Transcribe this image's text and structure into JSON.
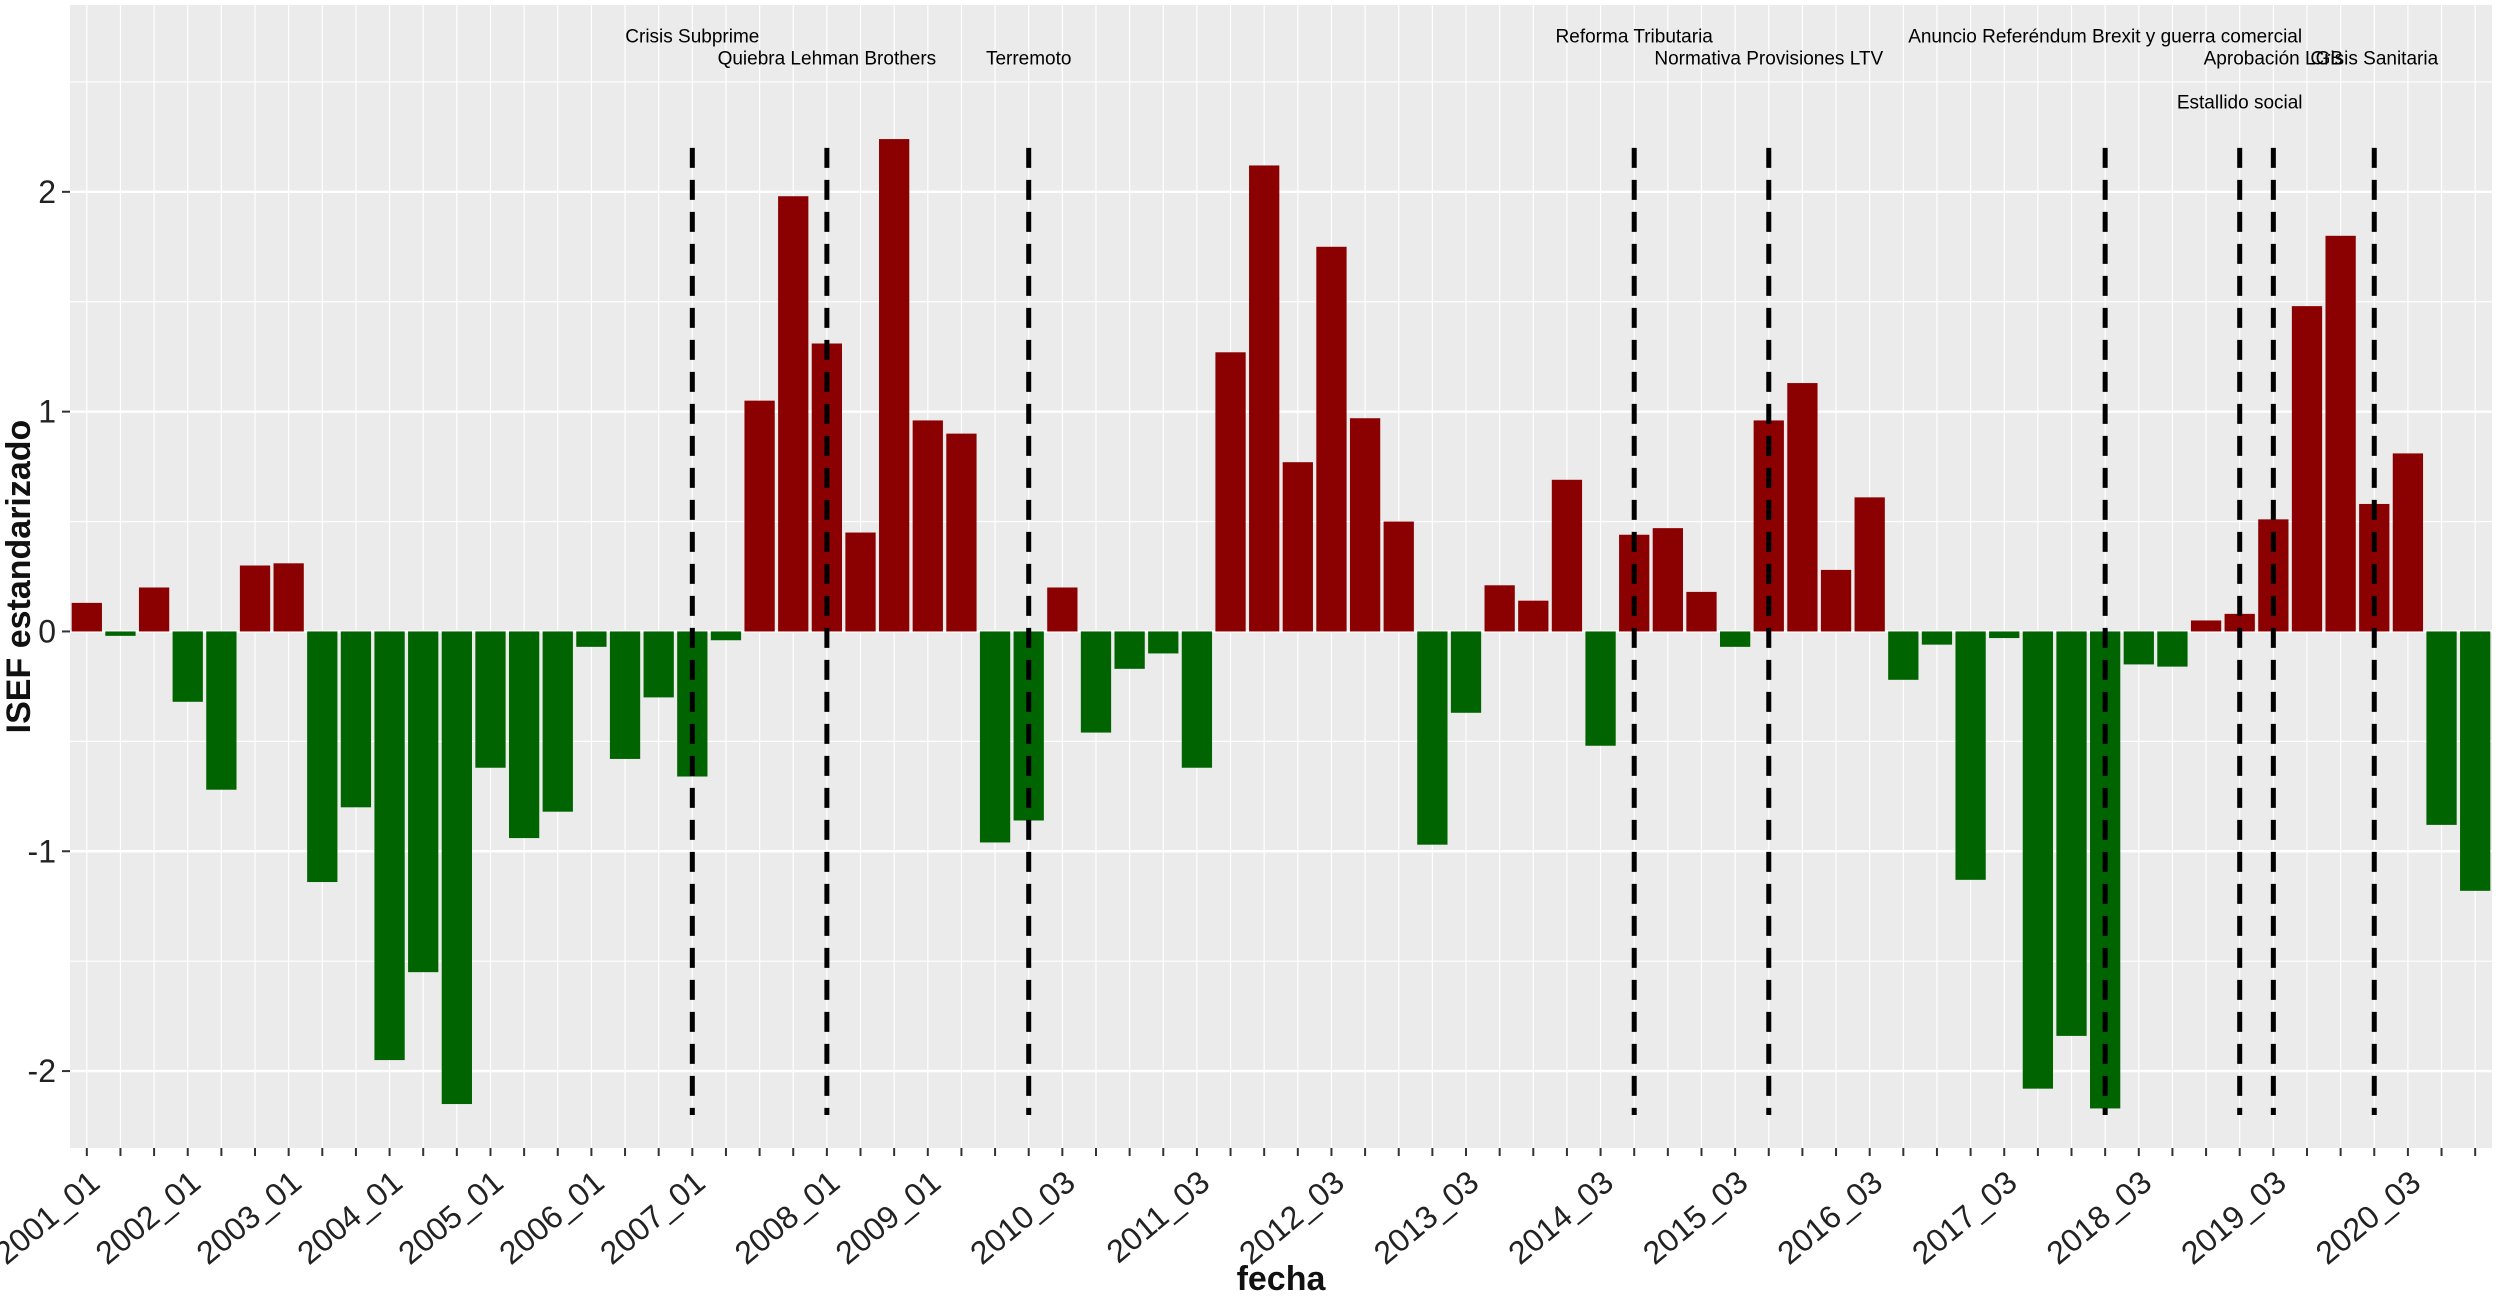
{
  "chart_data": {
    "type": "bar",
    "title": "",
    "xlabel": "fecha",
    "ylabel": "ISEF estandarizado",
    "ylim": [
      -2.35,
      2.85
    ],
    "y_ticks": [
      -2,
      -1,
      0,
      1,
      2
    ],
    "grid": true,
    "legend": "none",
    "colors": {
      "positive": "#8b0000",
      "negative": "#006400",
      "panel": "#ebebeb",
      "grid": "#ffffff",
      "event_line": "#000000"
    },
    "x_tick_labels": [
      "2001_01",
      "2002_01",
      "2003_01",
      "2004_01",
      "2005_01",
      "2006_01",
      "2007_01",
      "2008_01",
      "2009_01",
      "2010_03",
      "2011_03",
      "2012_03",
      "2013_03",
      "2014_03",
      "2015_03",
      "2016_03",
      "2017_03",
      "2018_03",
      "2019_03",
      "2020_03"
    ],
    "x_tick_positions": [
      1,
      4,
      7,
      10,
      13,
      16,
      19,
      23,
      26,
      30,
      34,
      38,
      42,
      46,
      50,
      54,
      58,
      62,
      66,
      70
    ],
    "values": [
      0.13,
      -0.02,
      0.2,
      -0.32,
      -0.72,
      0.3,
      0.31,
      -1.14,
      -0.8,
      -1.95,
      -1.55,
      -2.15,
      -0.62,
      -0.94,
      -0.82,
      -0.07,
      -0.58,
      -0.3,
      -0.66,
      -0.04,
      1.05,
      1.98,
      1.31,
      0.45,
      2.24,
      0.96,
      0.9,
      -0.96,
      -0.86,
      0.2,
      -0.46,
      -0.17,
      -0.1,
      -0.62,
      1.27,
      2.12,
      0.77,
      1.75,
      0.97,
      0.5,
      -0.97,
      -0.37,
      0.21,
      0.14,
      0.69,
      -0.52,
      0.44,
      0.47,
      0.18,
      -0.07,
      0.96,
      1.13,
      0.28,
      0.61,
      -0.22,
      -0.06,
      -1.13,
      -0.03,
      -2.08,
      -1.84,
      -2.17,
      -0.15,
      -0.16,
      0.05,
      0.08,
      0.51,
      1.48,
      1.8,
      0.58,
      0.81,
      -0.88,
      -1.18
    ],
    "events": [
      {
        "label": "Crisis Subprime",
        "position": 19
      },
      {
        "label": "Quiebra Lehman Brothers",
        "position": 23
      },
      {
        "label": "Terremoto",
        "position": 29
      },
      {
        "label": "Reforma Tributaria",
        "position": 47
      },
      {
        "label": "Normativa Provisiones LTV",
        "position": 51
      },
      {
        "label": "Anuncio Referéndum Brexit y guerra comercial",
        "position": 61
      },
      {
        "label": "Estallido social",
        "position": 65
      },
      {
        "label": "Aprobación LGB",
        "position": 66
      },
      {
        "label": "Crisis Sanitaria",
        "position": 69
      }
    ]
  }
}
